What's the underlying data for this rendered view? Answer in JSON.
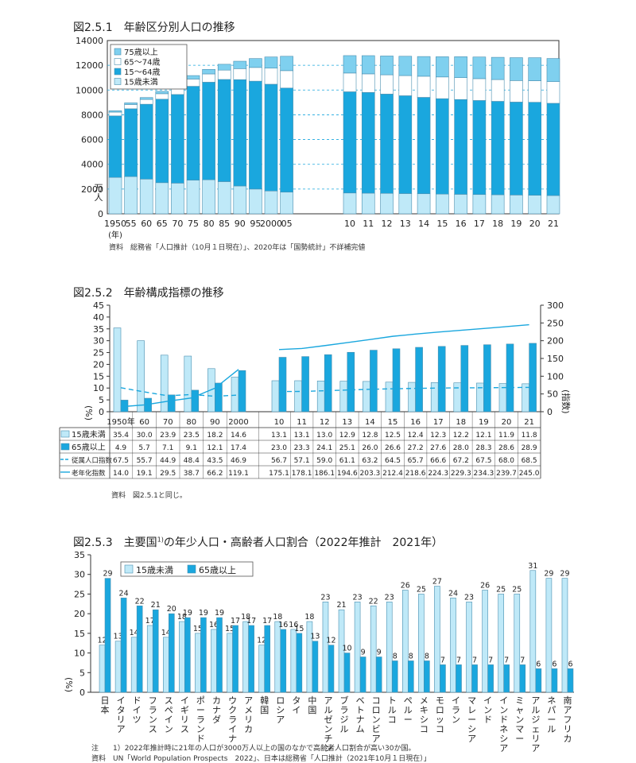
{
  "colors": {
    "dark": "#1aa7de",
    "light": "#bfe9f8",
    "pale": "#ffffff",
    "mid": "#7fd0ef",
    "line": "#1aa7de",
    "grid": "#1aa7de"
  },
  "c1": {
    "title": "図2.5.1　年齢区分別人口の推移",
    "ylabel": "（万人）",
    "year_suffix": "(年)",
    "source": "資料　総務省「人口推計（10月１日現在）」、2020年は「国勢統計」不詳補完値"
  },
  "c2": {
    "title": "図2.5.2　年齢構成指標の推移",
    "ylabel_left": "(%)",
    "ylabel_right": "(指数)",
    "source": "資料　図2.5.1と同じ。"
  },
  "c3": {
    "title": "図2.5.3　主要国",
    "title_sup": "1)",
    "title_rest": "の年少人口・高齢者人口割合（2022年推計　2021年）",
    "ylabel": "(%)",
    "note": "注　　1）2022年推計時に21年の人口が3000万人以上の国のなかで高齢者人口割合が高い30か国。",
    "source": "資料　UN「World Population Prospects　2022」、日本は総務省「人口推計（2021年10月１日現在）」"
  },
  "chart_data": [
    {
      "type": "bar",
      "stacked": true,
      "categories": [
        "1950",
        "55",
        "60",
        "65",
        "70",
        "75",
        "80",
        "85",
        "90",
        "95",
        "2000",
        "05",
        "10",
        "11",
        "12",
        "13",
        "14",
        "15",
        "16",
        "17",
        "18",
        "19",
        "20",
        "21"
      ],
      "series": [
        {
          "name": "15歳未満",
          "values": [
            2943,
            3012,
            2807,
            2517,
            2482,
            2722,
            2751,
            2603,
            2249,
            2001,
            1847,
            1752,
            1684,
            1670,
            1655,
            1639,
            1623,
            1595,
            1578,
            1559,
            1542,
            1521,
            1503,
            1478
          ]
        },
        {
          "name": "15〜64歳",
          "values": [
            4966,
            5473,
            6047,
            6744,
            7157,
            7581,
            7883,
            8251,
            8590,
            8716,
            8622,
            8409,
            8174,
            8134,
            8018,
            7901,
            7785,
            7708,
            7656,
            7596,
            7545,
            7507,
            7509,
            7450
          ]
        },
        {
          "name": "65〜74歳",
          "values": [
            309,
            348,
            390,
            444,
            519,
            588,
            669,
            757,
            893,
            1109,
            1301,
            1407,
            1517,
            1504,
            1560,
            1630,
            1708,
            1755,
            1768,
            1767,
            1760,
            1740,
            1742,
            1754
          ]
        },
        {
          "name": "75歳以上",
          "values": [
            107,
            131,
            150,
            187,
            224,
            278,
            366,
            471,
            597,
            717,
            901,
            1160,
            1407,
            1471,
            1519,
            1560,
            1592,
            1632,
            1691,
            1748,
            1798,
            1849,
            1860,
            1867
          ]
        }
      ],
      "ylim": [
        0,
        14000
      ],
      "yticks": [
        0,
        2000,
        4000,
        6000,
        8000,
        10000,
        12000,
        14000
      ],
      "grid": true,
      "legend": "top-left"
    },
    {
      "type": "bar+line",
      "categories": [
        "1950年",
        "60",
        "70",
        "80",
        "90",
        "2000",
        "10",
        "11",
        "12",
        "13",
        "14",
        "15",
        "16",
        "17",
        "18",
        "19",
        "20",
        "21"
      ],
      "bar_series": [
        {
          "name": "15歳未満",
          "values": [
            35.4,
            30.0,
            23.9,
            23.5,
            18.2,
            14.6,
            13.1,
            13.1,
            13.0,
            12.9,
            12.8,
            12.5,
            12.4,
            12.3,
            12.2,
            12.1,
            11.9,
            11.8
          ]
        },
        {
          "name": "65歳以上",
          "values": [
            4.9,
            5.7,
            7.1,
            9.1,
            12.1,
            17.4,
            23.0,
            23.3,
            24.1,
            25.1,
            26.0,
            26.6,
            27.2,
            27.6,
            28.0,
            28.3,
            28.6,
            28.9
          ]
        }
      ],
      "line_series": [
        {
          "name": "従属人口指数",
          "values": [
            67.5,
            55.7,
            44.9,
            48.4,
            43.5,
            46.9,
            56.7,
            57.1,
            59.0,
            61.1,
            63.2,
            64.5,
            65.7,
            66.6,
            67.2,
            67.5,
            68.0,
            68.5
          ]
        },
        {
          "name": "老年化指数",
          "values": [
            14.0,
            19.1,
            29.5,
            38.7,
            66.2,
            119.1,
            175.1,
            178.1,
            186.1,
            194.6,
            203.3,
            212.4,
            218.6,
            224.3,
            229.3,
            234.3,
            239.7,
            245.0
          ]
        }
      ],
      "ylim_left": [
        0,
        45
      ],
      "yticks_left": [
        0,
        5,
        10,
        15,
        20,
        25,
        30,
        35,
        40,
        45
      ],
      "ylim_right": [
        0,
        300
      ],
      "yticks_right": [
        0,
        50,
        100,
        150,
        200,
        250,
        300
      ],
      "table": true
    },
    {
      "type": "bar",
      "categories": [
        "日本",
        "イタリア",
        "ドイツ",
        "フランス",
        "スペイン",
        "イギリス",
        "ポーランド",
        "カナダ",
        "ウクライナ",
        "アメリカ",
        "韓国",
        "ロシア",
        "タイ",
        "中国",
        "アルゼンチン",
        "ブラジル",
        "ベトナム",
        "コロンビア",
        "トルコ",
        "ペルー",
        "メキシコ",
        "モロッコ",
        "イラン",
        "マレーシア",
        "インド",
        "インドネシア",
        "ミャンマー",
        "アルジェリア",
        "ネパール",
        "南アフリカ"
      ],
      "series": [
        {
          "name": "15歳未満",
          "values": [
            12,
            13,
            14,
            17,
            14,
            18,
            15,
            16,
            15,
            18,
            12,
            18,
            16,
            18,
            23,
            21,
            23,
            22,
            23,
            26,
            25,
            27,
            24,
            23,
            26,
            25,
            25,
            31,
            29,
            29
          ]
        },
        {
          "name": "65歳以上",
          "values": [
            29,
            24,
            22,
            21,
            20,
            19,
            19,
            19,
            17,
            17,
            17,
            16,
            15,
            13,
            12,
            10,
            9,
            9,
            8,
            8,
            8,
            7,
            7,
            7,
            7,
            7,
            7,
            6,
            6,
            6
          ]
        }
      ],
      "ylim": [
        0,
        35
      ],
      "yticks": [
        0,
        5,
        10,
        15,
        20,
        25,
        30,
        35
      ],
      "legend": "top-left"
    }
  ]
}
